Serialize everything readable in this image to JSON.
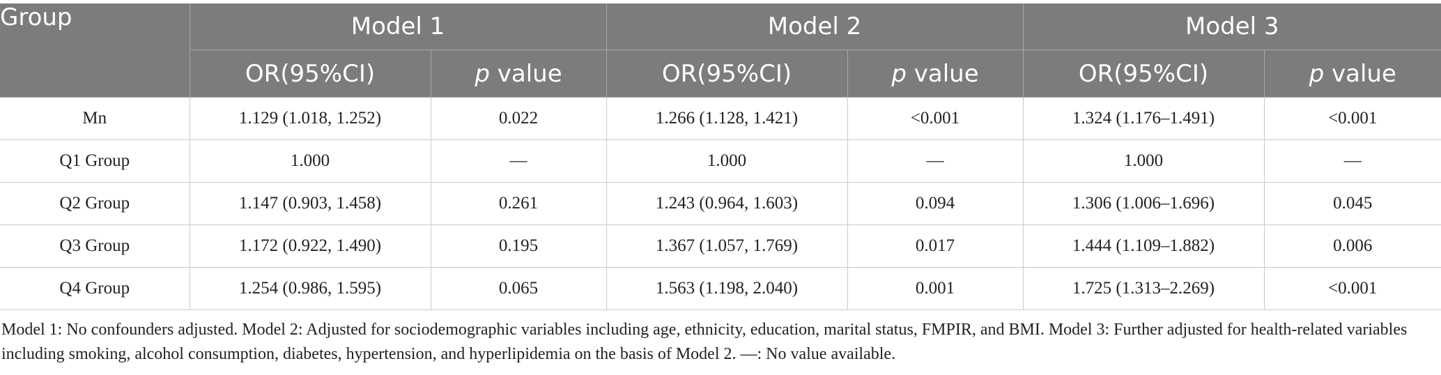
{
  "table": {
    "group_header": "Group",
    "models": [
      "Model 1",
      "Model 2",
      "Model 3"
    ],
    "or_label": "OR(95%CI)",
    "p_italic": "p",
    "p_rest": " value",
    "rows": [
      {
        "group": "Mn",
        "m1_or": "1.129 (1.018, 1.252)",
        "m1_p": "0.022",
        "m2_or": "1.266 (1.128, 1.421)",
        "m2_p": "<0.001",
        "m3_or": "1.324 (1.176–1.491)",
        "m3_p": "<0.001"
      },
      {
        "group": "Q1 Group",
        "m1_or": "1.000",
        "m1_p": "—",
        "m2_or": "1.000",
        "m2_p": "—",
        "m3_or": "1.000",
        "m3_p": "—"
      },
      {
        "group": "Q2 Group",
        "m1_or": "1.147 (0.903, 1.458)",
        "m1_p": "0.261",
        "m2_or": "1.243 (0.964, 1.603)",
        "m2_p": "0.094",
        "m3_or": "1.306 (1.006–1.696)",
        "m3_p": "0.045"
      },
      {
        "group": "Q3 Group",
        "m1_or": "1.172 (0.922, 1.490)",
        "m1_p": "0.195",
        "m2_or": "1.367 (1.057, 1.769)",
        "m2_p": "0.017",
        "m3_or": "1.444 (1.109–1.882)",
        "m3_p": "0.006"
      },
      {
        "group": "Q4 Group",
        "m1_or": "1.254 (0.986, 1.595)",
        "m1_p": "0.065",
        "m2_or": "1.563 (1.198, 2.040)",
        "m2_p": "0.001",
        "m3_or": "1.725 (1.313–2.269)",
        "m3_p": "<0.001"
      }
    ]
  },
  "footnote": "Model 1: No confounders adjusted. Model 2: Adjusted for sociodemographic variables including age, ethnicity, education, marital status, FMPIR, and BMI. Model 3: Further adjusted for health-related variables including smoking, alcohol consumption, diabetes, hypertension, and hyperlipidemia on the basis of Model 2. —: No value available."
}
